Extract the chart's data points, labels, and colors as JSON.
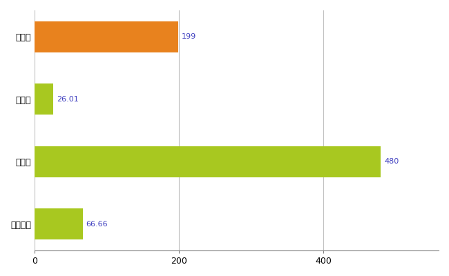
{
  "categories": [
    "豊平区",
    "県平均",
    "県最大",
    "全国平均"
  ],
  "values": [
    199,
    26.01,
    480,
    66.66
  ],
  "bar_colors": [
    "#E8821E",
    "#A8C820",
    "#A8C820",
    "#A8C820"
  ],
  "label_color": "#4040C0",
  "background_color": "#FFFFFF",
  "grid_color": "#C0C0C0",
  "xlim": [
    0,
    560
  ],
  "xticks": [
    0,
    200,
    400
  ],
  "bar_height": 0.5,
  "label_fontsize": 9,
  "tick_fontsize": 9,
  "value_label_fontsize": 8
}
